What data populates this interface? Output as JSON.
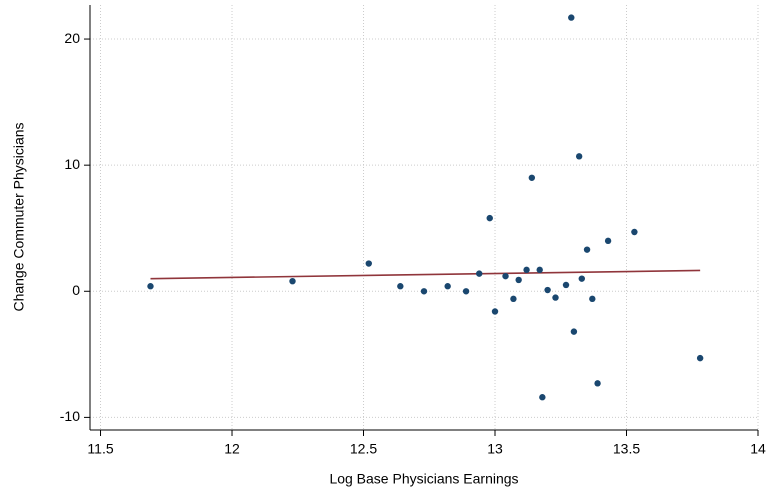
{
  "chart_data": {
    "type": "scatter",
    "xlabel": "Log Base Physicians Earnings",
    "ylabel": "Change Commuter Physicians",
    "x": [
      11.69,
      12.23,
      12.52,
      12.64,
      12.73,
      12.82,
      12.89,
      12.94,
      12.98,
      13.0,
      13.04,
      13.07,
      13.09,
      13.12,
      13.14,
      13.17,
      13.18,
      13.2,
      13.23,
      13.27,
      13.29,
      13.3,
      13.32,
      13.33,
      13.35,
      13.37,
      13.39,
      13.43,
      13.53,
      13.78
    ],
    "values": [
      0.4,
      0.8,
      2.2,
      0.4,
      0.0,
      0.4,
      0.0,
      1.4,
      5.8,
      -1.6,
      1.2,
      -0.6,
      0.9,
      1.7,
      9.0,
      1.7,
      -8.4,
      0.1,
      -0.5,
      0.5,
      21.7,
      -3.2,
      10.7,
      1.0,
      3.3,
      -0.6,
      -7.3,
      4.0,
      4.7,
      -5.3
    ],
    "color": "#1a476f",
    "fit": {
      "x": [
        11.69,
        13.78
      ],
      "values": [
        1.0,
        1.65
      ],
      "color": "#90353b"
    },
    "xlim": [
      11.46,
      14
    ],
    "xticks": [
      11.5,
      12,
      12.5,
      13,
      13.5,
      14
    ],
    "ylim": [
      -11,
      22.7
    ],
    "yticks": [
      -10,
      0,
      10,
      20
    ],
    "grid": true
  }
}
